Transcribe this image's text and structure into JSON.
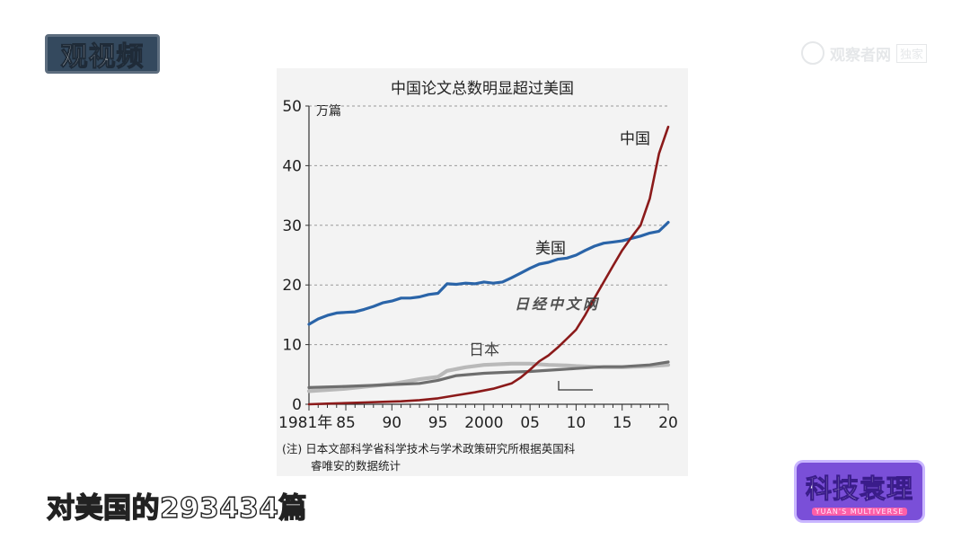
{
  "logo": {
    "text": "观视频"
  },
  "watermark": {
    "text": "观察者网",
    "box": "独家"
  },
  "caption": {
    "text": "对美国的293434篇"
  },
  "badge": {
    "title": "科技袁理",
    "subtitle": "YUAN'S MULTIVERSE"
  },
  "chart_data": {
    "type": "line",
    "title": "中国论文总数明显超过美国",
    "ylabel": "万篇",
    "ylim": [
      0,
      50
    ],
    "yticks": [
      "0",
      "10",
      "20",
      "30",
      "40",
      "50"
    ],
    "xlim": [
      1981,
      2020
    ],
    "xticks": [
      {
        "label": "1981年",
        "x": 1981
      },
      {
        "label": "85",
        "x": 1985
      },
      {
        "label": "90",
        "x": 1990
      },
      {
        "label": "95",
        "x": 1995
      },
      {
        "label": "2000",
        "x": 2000
      },
      {
        "label": "05",
        "x": 2005
      },
      {
        "label": "10",
        "x": 2010
      },
      {
        "label": "15",
        "x": 2015
      },
      {
        "label": "20",
        "x": 2020
      }
    ],
    "grid": true,
    "note": "(注) 日本文部科学省科学技术与学术政策研究所根据英国科睿唯安的数据统计",
    "watermark": "日经中文网",
    "colors": {
      "china": "#8b1a1a",
      "usa": "#2a64a8",
      "japan": "#6e6e6e",
      "japan_light": "#b9b9b9"
    },
    "series": [
      {
        "name": "中国",
        "x": [
          1981,
          1983,
          1985,
          1987,
          1989,
          1991,
          1993,
          1995,
          1997,
          1999,
          2001,
          2003,
          2004,
          2005,
          2006,
          2007,
          2008,
          2009,
          2010,
          2011,
          2012,
          2013,
          2014,
          2015,
          2016,
          2017,
          2018,
          2019,
          2020
        ],
        "values": [
          0,
          0.1,
          0.2,
          0.3,
          0.4,
          0.5,
          0.7,
          1.0,
          1.5,
          2.0,
          2.6,
          3.5,
          4.5,
          5.8,
          7.2,
          8.2,
          9.5,
          11.0,
          12.5,
          15.0,
          17.8,
          20.5,
          23.2,
          25.8,
          28.0,
          30.0,
          34.5,
          42.0,
          46.5
        ]
      },
      {
        "name": "美国",
        "x": [
          1981,
          1982,
          1983,
          1984,
          1985,
          1986,
          1987,
          1988,
          1989,
          1990,
          1991,
          1992,
          1993,
          1994,
          1995,
          1996,
          1997,
          1998,
          1999,
          2000,
          2001,
          2002,
          2003,
          2004,
          2005,
          2006,
          2007,
          2008,
          2009,
          2010,
          2011,
          2012,
          2013,
          2014,
          2015,
          2016,
          2017,
          2018,
          2019,
          2020
        ],
        "values": [
          13.4,
          14.3,
          14.9,
          15.3,
          15.4,
          15.5,
          15.9,
          16.4,
          17.0,
          17.3,
          17.8,
          17.8,
          18.0,
          18.4,
          18.6,
          20.2,
          20.1,
          20.3,
          20.2,
          20.5,
          20.3,
          20.5,
          21.2,
          22.0,
          22.8,
          23.5,
          23.8,
          24.3,
          24.5,
          25.0,
          25.8,
          26.5,
          27.0,
          27.2,
          27.4,
          27.8,
          28.2,
          28.7,
          29.0,
          30.5
        ]
      },
      {
        "name": "日本",
        "x": [
          1981,
          1985,
          1990,
          1993,
          1995,
          1997,
          2000,
          2003,
          2005,
          2008,
          2010,
          2013,
          2015,
          2018,
          2020
        ],
        "values": [
          2.8,
          3.0,
          3.3,
          3.5,
          4.0,
          4.8,
          5.2,
          5.4,
          5.5,
          5.8,
          6.0,
          6.3,
          6.3,
          6.6,
          7.1
        ]
      },
      {
        "name": "日本(浅色)",
        "x": [
          1981,
          1985,
          1990,
          1993,
          1995,
          1996,
          1998,
          2000,
          2003,
          2005,
          2007,
          2009,
          2010,
          2013,
          2015,
          2018,
          2020
        ],
        "values": [
          2.2,
          2.6,
          3.4,
          4.2,
          4.6,
          5.6,
          6.2,
          6.6,
          6.8,
          6.8,
          6.6,
          6.5,
          6.4,
          6.2,
          6.2,
          6.4,
          6.6
        ]
      }
    ],
    "series_labels": [
      "中国",
      "美国",
      "日本"
    ]
  }
}
